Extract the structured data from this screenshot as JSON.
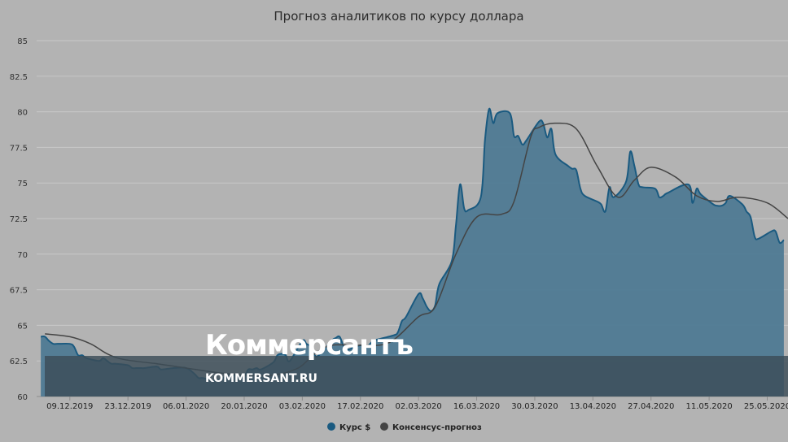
{
  "chart_data": {
    "type": "area",
    "title": "Прогноз аналитиков по курсу доллара",
    "ylim": [
      60,
      85
    ],
    "y_ticks": [
      "85",
      "82.5",
      "80",
      "77.5",
      "75",
      "72.5",
      "70",
      "67.5",
      "65",
      "62.5",
      "60"
    ],
    "x_tick_labels": [
      "09.12.2019",
      "23.12.2019",
      "06.01.2020",
      "20.01.2020",
      "03.02.2020",
      "17.02.2020",
      "02.03.2020",
      "16.03.2020",
      "30.03.2020",
      "13.04.2020",
      "27.04.2020",
      "11.05.2020",
      "25.05.2020"
    ],
    "x_ticks": [
      "2019-12-09",
      "2019-12-23",
      "2020-01-06",
      "2020-01-20",
      "2020-02-03",
      "2020-02-17",
      "2020-03-02",
      "2020-03-16",
      "2020-03-30",
      "2020-04-13",
      "2020-04-27",
      "2020-05-11",
      "2020-05-25"
    ],
    "xlim": [
      "2019-12-01",
      "2020-05-30"
    ],
    "grid": true,
    "legend_position": "bottom-center",
    "series": [
      {
        "name": "Курс $",
        "type": "area",
        "color": "#1a5a80",
        "fill": "#4f7a93",
        "points": [
          [
            "2019-12-02",
            64.2
          ],
          [
            "2019-12-03",
            64.2
          ],
          [
            "2019-12-04",
            63.9
          ],
          [
            "2019-12-05",
            63.7
          ],
          [
            "2019-12-06",
            63.7
          ],
          [
            "2019-12-09",
            63.7
          ],
          [
            "2019-12-10",
            63.5
          ],
          [
            "2019-12-11",
            62.9
          ],
          [
            "2019-12-12",
            62.9
          ],
          [
            "2019-12-13",
            62.7
          ],
          [
            "2019-12-16",
            62.5
          ],
          [
            "2019-12-17",
            62.7
          ],
          [
            "2019-12-18",
            62.5
          ],
          [
            "2019-12-19",
            62.3
          ],
          [
            "2019-12-20",
            62.3
          ],
          [
            "2019-12-23",
            62.2
          ],
          [
            "2019-12-24",
            62.0
          ],
          [
            "2019-12-25",
            62.0
          ],
          [
            "2019-12-26",
            62.0
          ],
          [
            "2019-12-27",
            62.0
          ],
          [
            "2019-12-30",
            62.1
          ],
          [
            "2019-12-31",
            61.9
          ],
          [
            "2020-01-03",
            62.0
          ],
          [
            "2020-01-06",
            62.0
          ],
          [
            "2020-01-08",
            61.6
          ],
          [
            "2020-01-09",
            61.3
          ],
          [
            "2020-01-10",
            61.3
          ],
          [
            "2020-01-13",
            61.1
          ],
          [
            "2020-01-14",
            61.2
          ],
          [
            "2020-01-15",
            61.3
          ],
          [
            "2020-01-16",
            61.5
          ],
          [
            "2020-01-17",
            61.5
          ],
          [
            "2020-01-20",
            61.5
          ],
          [
            "2020-01-21",
            61.9
          ],
          [
            "2020-01-22",
            61.9
          ],
          [
            "2020-01-23",
            62.0
          ],
          [
            "2020-01-24",
            61.9
          ],
          [
            "2020-01-27",
            62.4
          ],
          [
            "2020-01-28",
            62.9
          ],
          [
            "2020-01-29",
            63.0
          ],
          [
            "2020-01-30",
            62.9
          ],
          [
            "2020-01-31",
            62.5
          ],
          [
            "2020-02-03",
            63.9
          ],
          [
            "2020-02-04",
            63.7
          ],
          [
            "2020-02-05",
            63.5
          ],
          [
            "2020-02-06",
            62.9
          ],
          [
            "2020-02-07",
            62.9
          ],
          [
            "2020-02-10",
            63.9
          ],
          [
            "2020-02-11",
            64.1
          ],
          [
            "2020-02-12",
            64.2
          ],
          [
            "2020-02-13",
            63.5
          ],
          [
            "2020-02-14",
            63.3
          ],
          [
            "2020-02-17",
            63.6
          ],
          [
            "2020-02-18",
            63.4
          ],
          [
            "2020-02-19",
            63.6
          ],
          [
            "2020-02-20",
            63.9
          ],
          [
            "2020-02-21",
            64.0
          ],
          [
            "2020-02-25",
            64.3
          ],
          [
            "2020-02-26",
            64.5
          ],
          [
            "2020-02-27",
            65.3
          ],
          [
            "2020-02-28",
            65.6
          ],
          [
            "2020-03-02",
            67.2
          ],
          [
            "2020-03-03",
            66.9
          ],
          [
            "2020-03-04",
            66.3
          ],
          [
            "2020-03-05",
            66.0
          ],
          [
            "2020-03-06",
            66.4
          ],
          [
            "2020-03-07",
            67.9
          ],
          [
            "2020-03-10",
            69.5
          ],
          [
            "2020-03-11",
            72.0
          ],
          [
            "2020-03-12",
            74.9
          ],
          [
            "2020-03-13",
            73.2
          ],
          [
            "2020-03-14",
            73.1
          ],
          [
            "2020-03-17",
            74.0
          ],
          [
            "2020-03-18",
            78.0
          ],
          [
            "2020-03-19",
            80.2
          ],
          [
            "2020-03-20",
            79.2
          ],
          [
            "2020-03-21",
            79.9
          ],
          [
            "2020-03-24",
            79.9
          ],
          [
            "2020-03-25",
            78.3
          ],
          [
            "2020-03-26",
            78.3
          ],
          [
            "2020-03-27",
            77.7
          ],
          [
            "2020-03-28",
            78.0
          ],
          [
            "2020-03-31",
            79.3
          ],
          [
            "2020-04-01",
            79.2
          ],
          [
            "2020-04-02",
            78.2
          ],
          [
            "2020-04-03",
            78.8
          ],
          [
            "2020-04-04",
            77.0
          ],
          [
            "2020-04-07",
            76.2
          ],
          [
            "2020-04-08",
            76.0
          ],
          [
            "2020-04-09",
            75.9
          ],
          [
            "2020-04-10",
            74.6
          ],
          [
            "2020-04-11",
            74.1
          ],
          [
            "2020-04-14",
            73.7
          ],
          [
            "2020-04-15",
            73.5
          ],
          [
            "2020-04-16",
            73.0
          ],
          [
            "2020-04-17",
            74.7
          ],
          [
            "2020-04-18",
            74.0
          ],
          [
            "2020-04-21",
            75.1
          ],
          [
            "2020-04-22",
            77.2
          ],
          [
            "2020-04-23",
            76.2
          ],
          [
            "2020-04-24",
            74.9
          ],
          [
            "2020-04-25",
            74.7
          ],
          [
            "2020-04-28",
            74.6
          ],
          [
            "2020-04-29",
            74.0
          ],
          [
            "2020-04-30",
            74.1
          ],
          [
            "2020-05-01",
            74.3
          ],
          [
            "2020-05-06",
            74.9
          ],
          [
            "2020-05-07",
            73.6
          ],
          [
            "2020-05-08",
            74.6
          ],
          [
            "2020-05-09",
            74.2
          ],
          [
            "2020-05-12",
            73.5
          ],
          [
            "2020-05-13",
            73.4
          ],
          [
            "2020-05-14",
            73.4
          ],
          [
            "2020-05-15",
            73.6
          ],
          [
            "2020-05-16",
            74.1
          ],
          [
            "2020-05-19",
            73.5
          ],
          [
            "2020-05-20",
            73.0
          ],
          [
            "2020-05-21",
            72.6
          ],
          [
            "2020-05-22",
            71.2
          ],
          [
            "2020-05-23",
            71.1
          ],
          [
            "2020-05-26",
            71.6
          ],
          [
            "2020-05-27",
            71.6
          ],
          [
            "2020-05-28",
            70.8
          ],
          [
            "2020-05-29",
            71.0
          ]
        ]
      },
      {
        "name": "Консенсус-прогноз",
        "type": "line",
        "color": "#444444",
        "points": [
          [
            "2019-12-03",
            64.4
          ],
          [
            "2019-12-09",
            64.2
          ],
          [
            "2019-12-14",
            63.7
          ],
          [
            "2019-12-18",
            63.0
          ],
          [
            "2019-12-22",
            62.6
          ],
          [
            "2019-12-30",
            62.3
          ],
          [
            "2020-01-06",
            62.0
          ],
          [
            "2020-01-13",
            61.7
          ],
          [
            "2020-01-20",
            61.5
          ],
          [
            "2020-01-27",
            61.5
          ],
          [
            "2020-02-02",
            62.0
          ],
          [
            "2020-02-06",
            63.0
          ],
          [
            "2020-02-10",
            63.6
          ],
          [
            "2020-02-17",
            63.6
          ],
          [
            "2020-02-24",
            63.8
          ],
          [
            "2020-03-02",
            65.6
          ],
          [
            "2020-03-06",
            66.3
          ],
          [
            "2020-03-11",
            70.0
          ],
          [
            "2020-03-16",
            72.6
          ],
          [
            "2020-03-22",
            72.8
          ],
          [
            "2020-03-25",
            73.7
          ],
          [
            "2020-03-29",
            78.2
          ],
          [
            "2020-03-31",
            78.9
          ],
          [
            "2020-04-04",
            79.2
          ],
          [
            "2020-04-09",
            78.8
          ],
          [
            "2020-04-14",
            76.2
          ],
          [
            "2020-04-19",
            74.0
          ],
          [
            "2020-04-23",
            75.2
          ],
          [
            "2020-04-27",
            76.1
          ],
          [
            "2020-05-03",
            75.4
          ],
          [
            "2020-05-08",
            74.1
          ],
          [
            "2020-05-13",
            73.7
          ],
          [
            "2020-05-18",
            74.0
          ],
          [
            "2020-05-25",
            73.6
          ],
          [
            "2020-05-30",
            72.5
          ]
        ]
      }
    ]
  },
  "watermark": {
    "brand": "Коммерсантъ",
    "url": "KOMMERSANT.RU"
  },
  "colors": {
    "background": "#b3b3b3",
    "grid": "#c8c8c8",
    "watermark_band": "#3c4d58"
  }
}
